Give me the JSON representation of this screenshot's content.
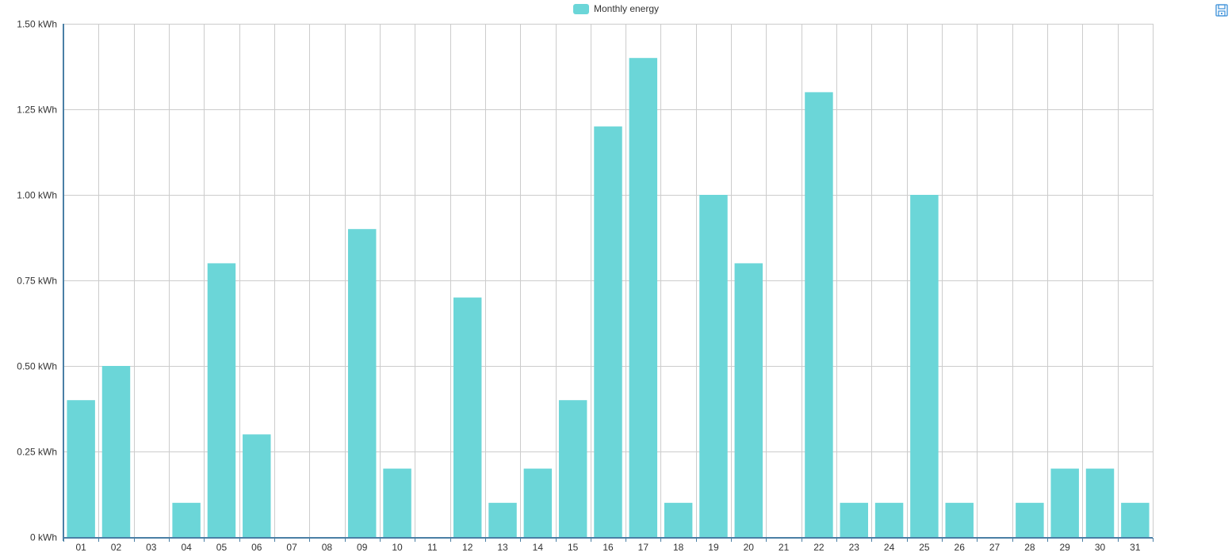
{
  "legend": {
    "label": "Monthly energy",
    "color": "#6bd6d8"
  },
  "toolbar": {
    "save_icon": "save-icon"
  },
  "colors": {
    "bar": "#6bd6d8",
    "grid": "#cccccc",
    "axis": "#4a7fa5"
  },
  "chart_data": {
    "type": "bar",
    "categories": [
      "01",
      "02",
      "03",
      "04",
      "05",
      "06",
      "07",
      "08",
      "09",
      "10",
      "11",
      "12",
      "13",
      "14",
      "15",
      "16",
      "17",
      "18",
      "19",
      "20",
      "21",
      "22",
      "23",
      "24",
      "25",
      "26",
      "27",
      "28",
      "29",
      "30",
      "31"
    ],
    "series": [
      {
        "name": "Monthly energy",
        "values": [
          0.4,
          0.5,
          0,
          0.1,
          0.8,
          0.3,
          0,
          0,
          0.9,
          0.2,
          0,
          0.7,
          0.1,
          0.2,
          0.4,
          1.2,
          1.4,
          0.1,
          1.0,
          0.8,
          0,
          1.3,
          0.1,
          0.1,
          1.0,
          0.1,
          0,
          0.1,
          0.2,
          0.2,
          0.1
        ]
      }
    ],
    "ylim": [
      0,
      1.5
    ],
    "yticks": [
      {
        "value": 0,
        "label": "0 kWh"
      },
      {
        "value": 0.25,
        "label": "0.25 kWh"
      },
      {
        "value": 0.5,
        "label": "0.50 kWh"
      },
      {
        "value": 0.75,
        "label": "0.75 kWh"
      },
      {
        "value": 1.0,
        "label": "1.00 kWh"
      },
      {
        "value": 1.25,
        "label": "1.25 kWh"
      },
      {
        "value": 1.5,
        "label": "1.50 kWh"
      }
    ],
    "grid": true,
    "legend_position": "top-center"
  }
}
